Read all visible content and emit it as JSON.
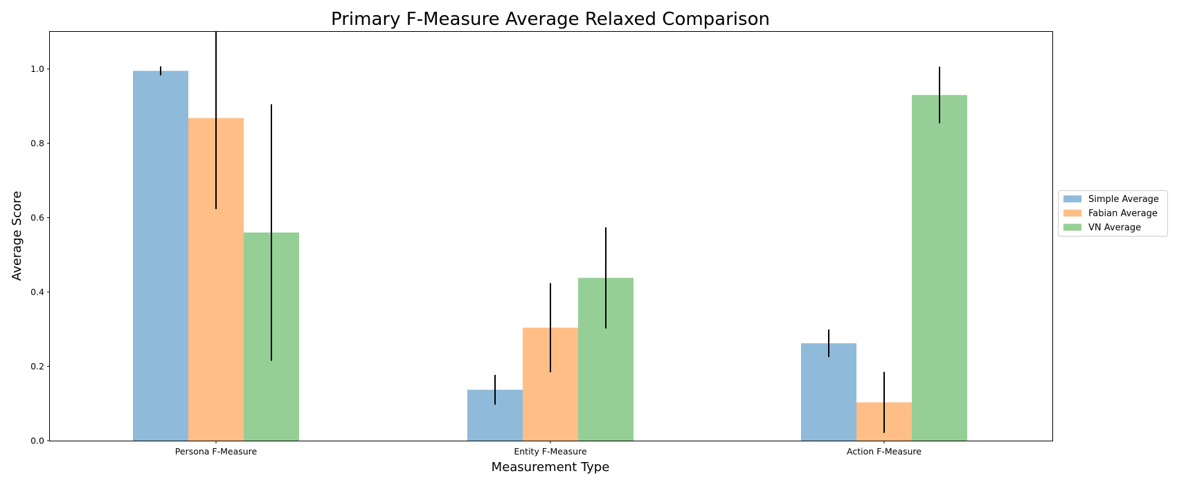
{
  "chart_data": {
    "type": "bar",
    "title": "Primary F-Measure Average Relaxed Comparison",
    "xlabel": "Measurement Type",
    "ylabel": "Average Score",
    "categories": [
      "Persona F-Measure",
      "Entity F-Measure",
      "Action F-Measure"
    ],
    "ylim": [
      0,
      1.1
    ],
    "yticks": [
      0.0,
      0.2,
      0.4,
      0.6,
      0.8,
      1.0
    ],
    "ytick_labels": [
      "0.0",
      "0.2",
      "0.4",
      "0.6",
      "0.8",
      "1.0"
    ],
    "grid": false,
    "legend_position": "right",
    "series": [
      {
        "name": "Simple Average",
        "color": "#8fbad9",
        "values": [
          0.995,
          0.137,
          0.262
        ],
        "errors": [
          0.012,
          0.04,
          0.037
        ]
      },
      {
        "name": "Fabian Average",
        "color": "#ffbe86",
        "values": [
          0.868,
          0.304,
          0.103
        ],
        "errors": [
          0.245,
          0.12,
          0.082
        ]
      },
      {
        "name": "VN Average",
        "color": "#95cf95",
        "values": [
          0.56,
          0.438,
          0.93
        ],
        "errors": [
          0.345,
          0.136,
          0.076
        ]
      }
    ],
    "error_bar_color": "#000000"
  }
}
